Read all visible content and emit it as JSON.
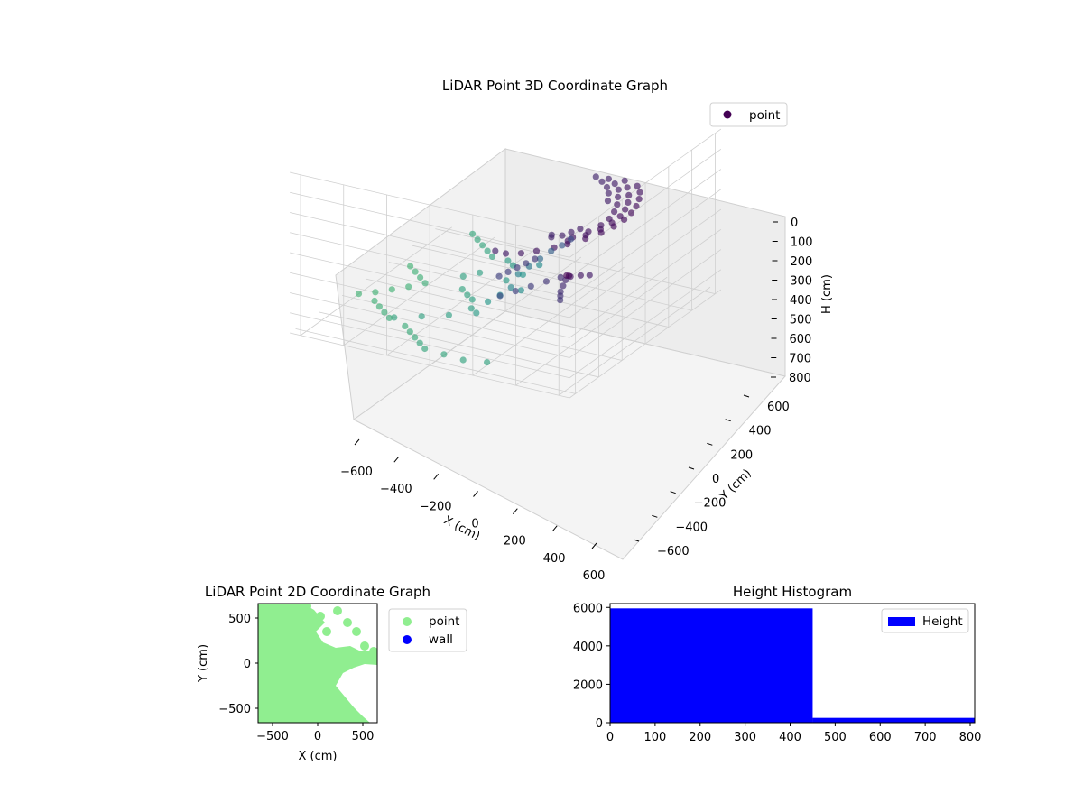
{
  "chart_data": [
    {
      "type": "scatter",
      "projection": "3d",
      "title": "LiDAR Point 3D Coordinate Graph",
      "xlabel": "X (cm)",
      "ylabel": "Y (cm)",
      "zlabel": "H (cm)",
      "xticks": [
        "−600",
        "−400",
        "−200",
        "0",
        "200",
        "400",
        "600"
      ],
      "yticks": [
        "−600",
        "−400",
        "−200",
        "0",
        "200",
        "400",
        "600"
      ],
      "zticks": [
        "0",
        "100",
        "200",
        "300",
        "400",
        "500",
        "600",
        "700",
        "800"
      ],
      "xlim": [
        -650,
        650
      ],
      "ylim": [
        -650,
        650
      ],
      "zlim": [
        0,
        800
      ],
      "z_inverted": true,
      "grid": true,
      "legend": {
        "placement": "top-right",
        "entries": [
          {
            "label": "point",
            "color": "#440154"
          }
        ]
      },
      "colormap": "viridis",
      "series": [
        {
          "name": "point",
          "points": [
            [
              -430,
              380,
              260
            ],
            [
              -360,
              430,
              250
            ],
            [
              -280,
              470,
              240
            ],
            [
              -200,
              500,
              235
            ],
            [
              -120,
              520,
              230
            ],
            [
              -40,
              530,
              228
            ],
            [
              40,
              525,
              230
            ],
            [
              120,
              510,
              232
            ],
            [
              200,
              480,
              236
            ],
            [
              280,
              440,
              240
            ],
            [
              -470,
              300,
              270
            ],
            [
              -400,
              350,
              262
            ],
            [
              -320,
              400,
              255
            ],
            [
              -240,
              440,
              248
            ],
            [
              -160,
              470,
              242
            ],
            [
              -80,
              490,
              238
            ],
            [
              0,
              495,
              236
            ],
            [
              80,
              485,
              238
            ],
            [
              160,
              460,
              240
            ],
            [
              240,
              420,
              245
            ],
            [
              -480,
              220,
              285
            ],
            [
              -440,
              270,
              280
            ],
            [
              -380,
              320,
              272
            ],
            [
              -300,
              360,
              266
            ],
            [
              -220,
              400,
              260
            ],
            [
              -140,
              430,
              255
            ],
            [
              -60,
              450,
              252
            ],
            [
              20,
              455,
              250
            ],
            [
              100,
              440,
              252
            ],
            [
              180,
              410,
              255
            ],
            [
              -500,
              150,
              300
            ],
            [
              -460,
              200,
              295
            ],
            [
              -410,
              250,
              290
            ],
            [
              -350,
              290,
              285
            ],
            [
              -270,
              330,
              280
            ],
            [
              320,
              400,
              250
            ],
            [
              380,
              350,
              255
            ],
            [
              420,
              300,
              262
            ],
            [
              440,
              240,
              270
            ],
            [
              420,
              180,
              280
            ],
            [
              60,
              380,
              270
            ],
            [
              100,
              360,
              275
            ],
            [
              140,
              340,
              280
            ],
            [
              160,
              300,
              290
            ],
            [
              120,
              280,
              300
            ],
            [
              -100,
              250,
              420
            ],
            [
              -80,
              220,
              450
            ],
            [
              -60,
              180,
              480
            ],
            [
              -40,
              140,
              520
            ],
            [
              -20,
              100,
              560
            ],
            [
              0,
              60,
              600
            ],
            [
              -200,
              50,
              640
            ],
            [
              -150,
              0,
              680
            ],
            [
              -100,
              -50,
              700
            ],
            [
              50,
              100,
              650
            ],
            [
              100,
              80,
              620
            ],
            [
              120,
              40,
              660
            ],
            [
              150,
              0,
              690
            ],
            [
              -250,
              -100,
              700
            ],
            [
              -300,
              -150,
              710
            ],
            [
              -150,
              -200,
              720
            ],
            [
              -100,
              -250,
              730
            ],
            [
              0,
              -200,
              740
            ],
            [
              50,
              -150,
              735
            ],
            [
              100,
              -100,
              725
            ],
            [
              200,
              -50,
              715
            ],
            [
              250,
              0,
              705
            ],
            [
              300,
              -100,
              720
            ],
            [
              350,
              -200,
              730
            ],
            [
              400,
              -300,
              740
            ],
            [
              -350,
              -250,
              735
            ],
            [
              -400,
              -300,
              740
            ],
            [
              -450,
              -350,
              745
            ],
            [
              -500,
              -400,
              750
            ],
            [
              -550,
              -450,
              755
            ],
            [
              500,
              550,
              300
            ],
            [
              540,
              560,
              310
            ],
            [
              580,
              570,
              320
            ],
            [
              600,
              580,
              330
            ],
            [
              620,
              590,
              340
            ],
            [
              450,
              500,
              320
            ],
            [
              480,
              450,
              340
            ],
            [
              520,
              400,
              360
            ],
            [
              560,
              350,
              380
            ],
            [
              600,
              300,
              400
            ],
            [
              300,
              300,
              340
            ],
            [
              340,
              280,
              350
            ],
            [
              380,
              260,
              360
            ],
            [
              420,
              240,
              370
            ],
            [
              460,
              220,
              380
            ],
            [
              550,
              600,
              250
            ],
            [
              600,
              620,
              220
            ],
            [
              640,
              630,
              200
            ],
            [
              500,
              620,
              260
            ],
            [
              460,
              640,
              270
            ],
            [
              -50,
              -400,
              780
            ],
            [
              0,
              -450,
              790
            ],
            [
              50,
              -500,
              795
            ],
            [
              100,
              -550,
              800
            ],
            [
              150,
              -600,
              800
            ],
            [
              -100,
              -450,
              785
            ],
            [
              -150,
              -500,
              790
            ],
            [
              -200,
              -550,
              795
            ],
            [
              200,
              -500,
              790
            ],
            [
              250,
              -450,
              785
            ],
            [
              300,
              -400,
              780
            ],
            [
              350,
              -350,
              775
            ],
            [
              400,
              -250,
              770
            ],
            [
              450,
              -200,
              765
            ],
            [
              500,
              -150,
              760
            ],
            [
              550,
              -100,
              755
            ],
            [
              600,
              -50,
              750
            ],
            [
              620,
              50,
              745
            ],
            [
              640,
              150,
              740
            ],
            [
              620,
              250,
              735
            ]
          ]
        }
      ]
    },
    {
      "type": "scatter",
      "title": "LiDAR Point 2D Coordinate Graph",
      "xlabel": "X (cm)",
      "ylabel": "Y (cm)",
      "xticks": [
        "−500",
        "0",
        "500"
      ],
      "yticks": [
        "−500",
        "0",
        "500"
      ],
      "xlim": [
        -660,
        660
      ],
      "ylim": [
        -660,
        660
      ],
      "legend": {
        "placement": "outside-right",
        "entries": [
          {
            "label": "point",
            "color": "#90ee90"
          },
          {
            "label": "wall",
            "color": "#0000ff"
          }
        ]
      },
      "series": [
        {
          "name": "point",
          "color": "#90ee90",
          "region": "dense filled cloud covering the left and centre of the plot"
        },
        {
          "name": "wall",
          "color": "#0000ff",
          "points": []
        }
      ]
    },
    {
      "type": "bar",
      "subtype": "histogram",
      "title": "Height Histogram",
      "xticks": [
        "0",
        "100",
        "200",
        "300",
        "400",
        "500",
        "600",
        "700",
        "800"
      ],
      "yticks": [
        "0",
        "2000",
        "4000",
        "6000"
      ],
      "xlim": [
        0,
        810
      ],
      "ylim": [
        0,
        6200
      ],
      "legend": {
        "placement": "top-right",
        "entries": [
          {
            "label": "Height",
            "color": "#0000ff"
          }
        ]
      },
      "bins": [
        {
          "from": 0,
          "to": 450,
          "count": 5950
        },
        {
          "from": 450,
          "to": 810,
          "count": 250
        }
      ]
    }
  ]
}
